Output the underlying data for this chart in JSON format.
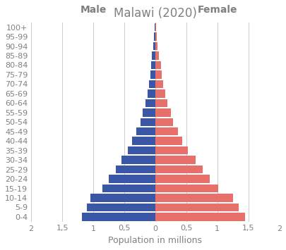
{
  "title": "Malawi (2020)",
  "age_groups": [
    "0-4",
    "5-9",
    "10-14",
    "15-19",
    "20-24",
    "25-29",
    "30-34",
    "35-39",
    "40-44",
    "45-49",
    "50-54",
    "55-59",
    "60-64",
    "65-69",
    "70-74",
    "75-79",
    "80-84",
    "85-89",
    "90-94",
    "95-99",
    "100+"
  ],
  "male": [
    1.18,
    1.1,
    1.05,
    0.85,
    0.75,
    0.64,
    0.54,
    0.44,
    0.37,
    0.3,
    0.24,
    0.2,
    0.16,
    0.12,
    0.1,
    0.08,
    0.07,
    0.05,
    0.03,
    0.02,
    0.01
  ],
  "female": [
    1.45,
    1.35,
    1.25,
    1.02,
    0.88,
    0.77,
    0.65,
    0.52,
    0.43,
    0.37,
    0.29,
    0.25,
    0.2,
    0.16,
    0.13,
    0.1,
    0.09,
    0.06,
    0.04,
    0.02,
    0.01
  ],
  "male_color": "#3a57a7",
  "female_color": "#e8706a",
  "xlabel": "Population in millions",
  "xlim": 2.0,
  "xticks": [
    -2,
    -1.5,
    -1,
    -0.5,
    0,
    0.5,
    1,
    1.5,
    2
  ],
  "xticklabels": [
    "2",
    "1,5",
    "1",
    "0,5",
    "0",
    "0,5",
    "1",
    "1,5",
    "2"
  ],
  "male_label": "Male",
  "female_label": "Female",
  "title_fontsize": 12,
  "axis_label_fontsize": 9,
  "tick_fontsize": 8,
  "gender_label_fontsize": 10,
  "text_color": "#808080",
  "grid_color": "#cccccc",
  "bar_height": 0.85
}
